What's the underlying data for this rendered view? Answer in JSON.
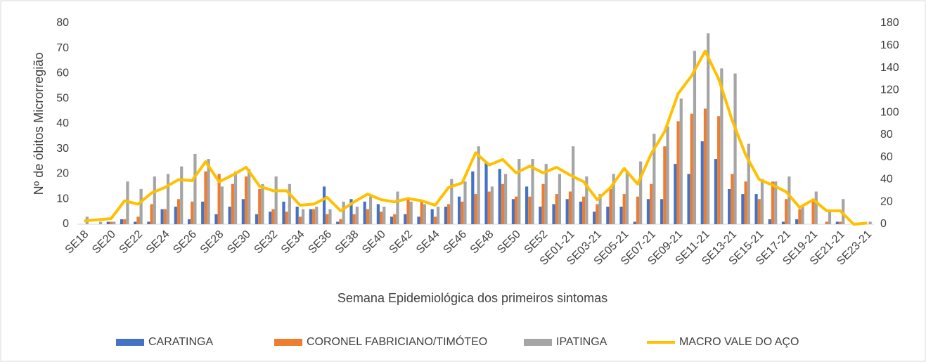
{
  "chart_data": {
    "type": "bar_line",
    "ylabel": "Nº de óbitos Microrregião",
    "xlabel": "Semana Epidemiológica dos primeiros sintomas",
    "categories": [
      "SE18",
      null,
      "SE20",
      null,
      "SE22",
      null,
      "SE24",
      null,
      "SE26",
      null,
      "SE28",
      null,
      "SE30",
      null,
      "SE32",
      null,
      "SE34",
      null,
      "SE36",
      null,
      "SE38",
      null,
      "SE40",
      null,
      "SE42",
      null,
      "SE44",
      null,
      "SE46",
      null,
      "SE48",
      null,
      "SE50",
      null,
      "SE52",
      null,
      "SE01-21",
      null,
      "SE03-21",
      null,
      "SE05-21",
      null,
      "SE07-21",
      null,
      "SE09-21",
      null,
      "SE11-21",
      null,
      "SE13-21",
      null,
      "SE15-21",
      null,
      "SE17-21",
      null,
      "SE19-21",
      null,
      "SE21-21",
      null,
      "SE23-21"
    ],
    "series": [
      {
        "name": "CARATINGA",
        "color": "#4472c4",
        "kind": "bar",
        "values": [
          0,
          0,
          1,
          2,
          1,
          1,
          6,
          7,
          2,
          9,
          4,
          7,
          10,
          4,
          5,
          9,
          7,
          6,
          15,
          1,
          10,
          9,
          8,
          3,
          4,
          3,
          6,
          7,
          11,
          21,
          25,
          22,
          10,
          15,
          7,
          8,
          10,
          9,
          5,
          7,
          7,
          1,
          10,
          10,
          24,
          20,
          33,
          26,
          14,
          12,
          12,
          2,
          1,
          2,
          0,
          0,
          1,
          0,
          0
        ]
      },
      {
        "name": "CORONEL FABRICIANO/TIMÓTEO",
        "color": "#ed7d31",
        "kind": "bar",
        "values": [
          0,
          0,
          1,
          2,
          3,
          8,
          6,
          10,
          9,
          21,
          20,
          16,
          19,
          14,
          6,
          5,
          3,
          6,
          4,
          2,
          4,
          6,
          5,
          4,
          10,
          9,
          3,
          8,
          9,
          12,
          13,
          16,
          11,
          11,
          16,
          12,
          13,
          11,
          8,
          14,
          12,
          11,
          16,
          31,
          41,
          44,
          46,
          43,
          20,
          17,
          10,
          17,
          10,
          6,
          9,
          1,
          1,
          0,
          0
        ]
      },
      {
        "name": "IPATINGA",
        "color": "#a5a5a5",
        "kind": "bar",
        "values": [
          3,
          1,
          1,
          17,
          14,
          19,
          20,
          23,
          28,
          26,
          15,
          21,
          22,
          16,
          19,
          16,
          6,
          7,
          6,
          9,
          7,
          11,
          7,
          13,
          9,
          8,
          7,
          18,
          17,
          31,
          15,
          20,
          26,
          26,
          24,
          20,
          31,
          19,
          12,
          20,
          21,
          25,
          36,
          39,
          50,
          69,
          76,
          62,
          60,
          32,
          18,
          17,
          19,
          7,
          13,
          5,
          10,
          0,
          1
        ]
      },
      {
        "name": "MACRO VALE DO AÇO",
        "color": "#ffc000",
        "kind": "line",
        "axis": "y2",
        "values": [
          3,
          4,
          5,
          21,
          18,
          28,
          33,
          40,
          39,
          56,
          38,
          44,
          51,
          34,
          30,
          30,
          17,
          18,
          24,
          12,
          20,
          27,
          22,
          20,
          23,
          21,
          17,
          33,
          37,
          64,
          53,
          58,
          46,
          52,
          46,
          51,
          44,
          38,
          22,
          33,
          50,
          36,
          63,
          83,
          117,
          133,
          155,
          130,
          93,
          62,
          40,
          35,
          29,
          15,
          22,
          12,
          12,
          0,
          1
        ]
      }
    ],
    "ylim": [
      0,
      80
    ],
    "yticks": [
      0,
      10,
      20,
      30,
      40,
      50,
      60,
      70,
      80
    ],
    "y2lim": [
      0,
      180
    ],
    "y2ticks": [
      0,
      20,
      40,
      60,
      80,
      100,
      120,
      140,
      160,
      180
    ],
    "legend": "bottom"
  }
}
